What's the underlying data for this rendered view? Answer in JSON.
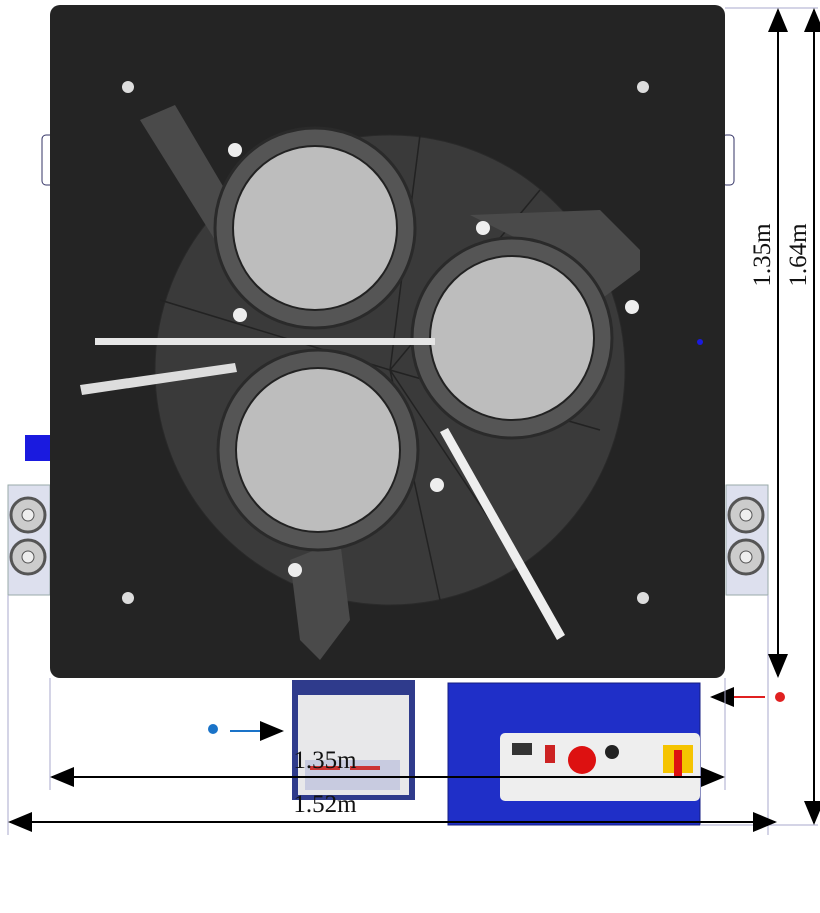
{
  "dimensions": {
    "plate_height": "1.35m",
    "total_height": "1.64m",
    "plate_width": "1.35m",
    "total_width": "1.52m"
  }
}
